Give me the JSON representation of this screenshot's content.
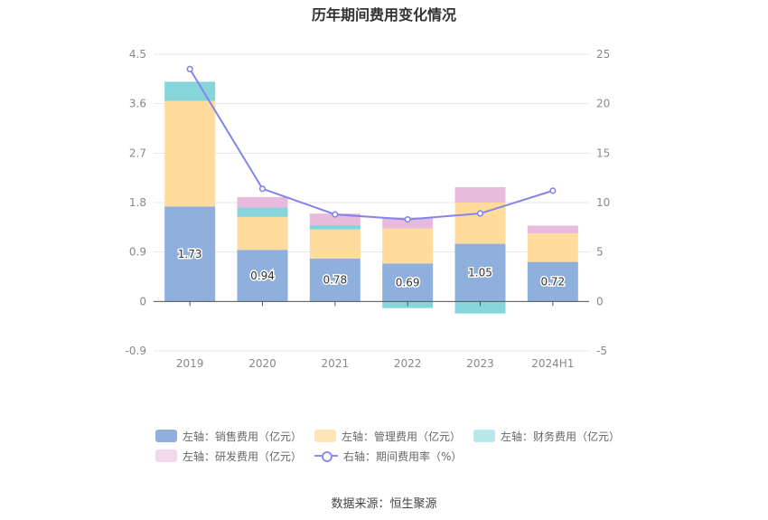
{
  "chart_data": {
    "type": "bar",
    "title": "历年期间费用变化情况",
    "categories": [
      "2019",
      "2020",
      "2021",
      "2022",
      "2023",
      "2024H1"
    ],
    "left_axis": {
      "ticks": [
        "4.5",
        "3.6",
        "2.7",
        "1.8",
        "0.9",
        "0",
        "-0.9"
      ],
      "ylim": [
        -0.9,
        4.5
      ]
    },
    "right_axis": {
      "ticks": [
        "25",
        "20",
        "15",
        "10",
        "5",
        "0",
        "-5"
      ],
      "ylim": [
        -5,
        25
      ]
    },
    "series": [
      {
        "name": "左轴：销售费用（亿元）",
        "type": "bar",
        "axis": "left",
        "color": "#8fb0dc",
        "values": [
          1.73,
          0.94,
          0.78,
          0.69,
          1.05,
          0.72
        ],
        "labels": [
          "1.73",
          "0.94",
          "0.78",
          "0.69",
          "1.05",
          "0.72"
        ]
      },
      {
        "name": "左轴：管理费用（亿元）",
        "type": "bar",
        "axis": "left",
        "color": "#ffdb9c",
        "values": [
          1.92,
          0.6,
          0.53,
          0.64,
          0.75,
          0.52
        ]
      },
      {
        "name": "左轴：财务费用（亿元）",
        "type": "bar",
        "axis": "left",
        "color": "#86d5db",
        "values": [
          0.35,
          0.17,
          0.08,
          -0.12,
          -0.22,
          -0.01
        ]
      },
      {
        "name": "左轴：研发费用（亿元）",
        "type": "bar",
        "axis": "left",
        "color": "#e8bbdc",
        "values": [
          0.0,
          0.19,
          0.21,
          0.2,
          0.28,
          0.14
        ]
      },
      {
        "name": "右轴：期间费用率（%）",
        "type": "line",
        "axis": "right",
        "color": "#8385ec",
        "values": [
          23.5,
          11.4,
          8.8,
          8.3,
          8.9,
          11.2
        ]
      }
    ],
    "grid": true,
    "legend_position": "bottom"
  },
  "source": "数据来源：恒生聚源"
}
